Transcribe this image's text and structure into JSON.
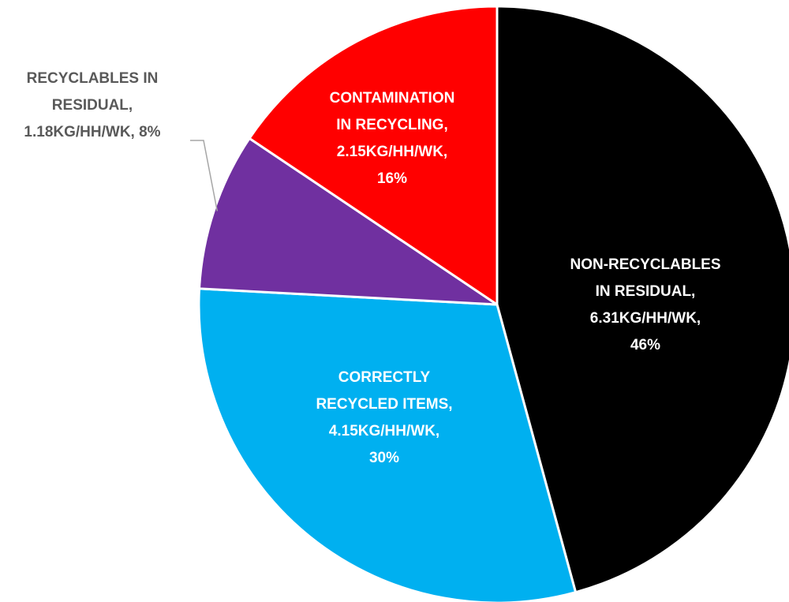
{
  "chart_data": {
    "type": "pie",
    "unit": "KG/HH/WK",
    "start_angle_deg": 0,
    "direction": "clockwise",
    "slices": [
      {
        "label_lines": [
          "NON-RECYCLABLES",
          "IN RESIDUAL,",
          "6.31KG/HH/WK,",
          "46%"
        ],
        "category": "NON-RECYCLABLES IN RESIDUAL",
        "value": 6.31,
        "percent": 46,
        "color": "#000000",
        "label_color": "#ffffff"
      },
      {
        "label_lines": [
          "CORRECTLY",
          "RECYCLED ITEMS,",
          "4.15KG/HH/WK,",
          "30%"
        ],
        "category": "CORRECTLY RECYCLED ITEMS",
        "value": 4.15,
        "percent": 30,
        "color": "#00b0f0",
        "label_color": "#ffffff"
      },
      {
        "label_lines": [
          "RECYCLABLES IN",
          "RESIDUAL,",
          "1.18KG/HH/WK, 8%"
        ],
        "category": "RECYCLABLES IN RESIDUAL",
        "value": 1.18,
        "percent": 8,
        "color": "#7030a0",
        "label_color": "#595959",
        "label_outside": true
      },
      {
        "label_lines": [
          "CONTAMINATION",
          "IN RECYCLING,",
          "2.15KG/HH/WK,",
          "16%"
        ],
        "category": "CONTAMINATION IN RECYCLING",
        "value": 2.15,
        "percent": 16,
        "color": "#ff0000",
        "label_color": "#ffffff"
      }
    ]
  }
}
